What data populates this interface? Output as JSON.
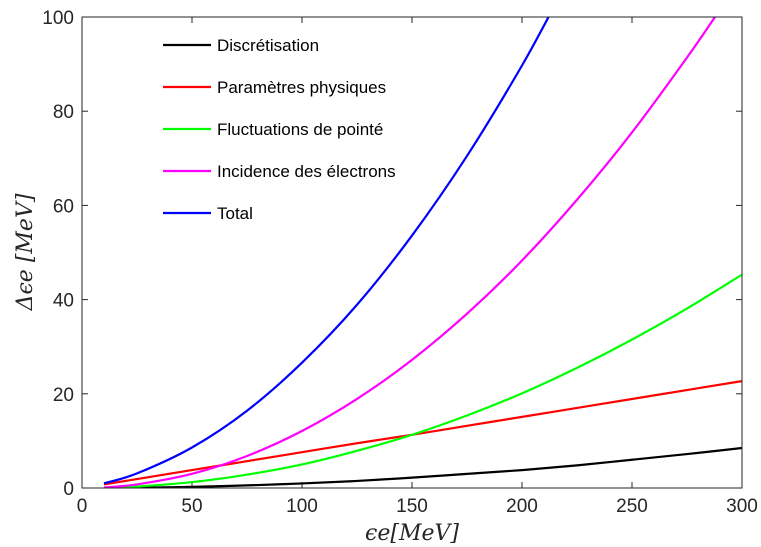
{
  "chart_data": {
    "type": "line",
    "title": "",
    "xlabel": "ϵe[MeV]",
    "ylabel": "Δϵe [MeV]",
    "xlim": [
      0,
      300
    ],
    "ylim": [
      0,
      100
    ],
    "xticks": [
      "0",
      "50",
      "100",
      "150",
      "200",
      "250",
      "300"
    ],
    "yticks": [
      "0",
      "20",
      "40",
      "60",
      "80",
      "100"
    ],
    "grid": false,
    "legend_position": "top-left",
    "series": [
      {
        "name": "Discrétisation",
        "color": "#000000",
        "x": [
          10,
          25,
          50,
          75,
          100,
          125,
          150,
          175,
          200,
          225,
          250,
          275,
          300
        ],
        "y": [
          0.01,
          0.06,
          0.24,
          0.55,
          0.97,
          1.5,
          2.2,
          3.0,
          3.8,
          4.8,
          6.0,
          7.2,
          8.5
        ]
      },
      {
        "name": "Paramètres physiques",
        "color": "#ff0000",
        "x": [
          10,
          25,
          50,
          75,
          100,
          125,
          150,
          175,
          200,
          225,
          250,
          275,
          300
        ],
        "y": [
          0.75,
          1.9,
          3.8,
          5.7,
          7.6,
          9.5,
          11.3,
          13.2,
          15.1,
          17.0,
          18.9,
          20.8,
          22.7
        ]
      },
      {
        "name": "Fluctuations de pointé",
        "color": "#00ff00",
        "x": [
          10,
          25,
          50,
          75,
          100,
          125,
          150,
          175,
          200,
          225,
          250,
          275,
          300
        ],
        "y": [
          0.05,
          0.31,
          1.26,
          2.83,
          5.0,
          7.9,
          11.3,
          15.4,
          20.1,
          25.5,
          31.5,
          38.1,
          45.3
        ]
      },
      {
        "name": "Incidence des électrons",
        "color": "#ff00ff",
        "x": [
          10,
          25,
          50,
          75,
          100,
          125,
          150,
          175,
          200,
          225,
          250,
          275,
          288
        ],
        "y": [
          0.12,
          0.76,
          3.0,
          6.8,
          12.1,
          18.9,
          27.2,
          37.0,
          48.3,
          61.2,
          75.5,
          91.4,
          100.2
        ]
      },
      {
        "name": "Total",
        "color": "#0000ff",
        "x": [
          10,
          25,
          50,
          75,
          100,
          125,
          150,
          175,
          200,
          216
        ],
        "y": [
          1.0,
          3.1,
          8.6,
          16.4,
          26.6,
          38.9,
          53.6,
          70.5,
          89.7,
          103.5
        ]
      }
    ]
  }
}
